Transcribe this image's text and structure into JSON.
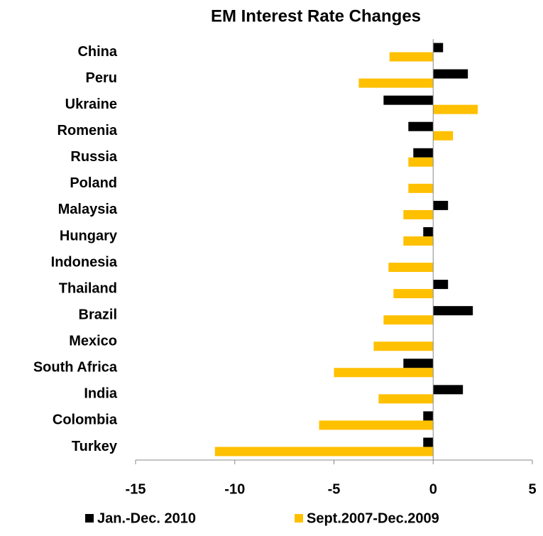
{
  "chart_data": {
    "type": "bar",
    "orientation": "horizontal",
    "title": "EM Interest Rate Changes",
    "categories": [
      "China",
      "Peru",
      "Ukraine",
      "Romenia",
      "Russia",
      "Poland",
      "Malaysia",
      "Hungary",
      "Indonesia",
      "Thailand",
      "Brazil",
      "Mexico",
      "South Africa",
      "India",
      "Colombia",
      "Turkey"
    ],
    "series": [
      {
        "name": "Jan.-Dec. 2010",
        "color": "#000000",
        "values": [
          0.5,
          1.75,
          -2.5,
          -1.25,
          -1.0,
          0,
          0.75,
          -0.5,
          0,
          0.75,
          2.0,
          0,
          -1.5,
          1.5,
          -0.5,
          -0.5
        ]
      },
      {
        "name": "Sept.2007-Dec.2009",
        "color": "#ffc000",
        "values": [
          -2.2,
          -3.75,
          2.25,
          1.0,
          -1.25,
          -1.25,
          -1.5,
          -1.5,
          -2.25,
          -2.0,
          -2.5,
          -3.0,
          -5.0,
          -2.75,
          -5.75,
          -11.0
        ]
      }
    ],
    "xlim": [
      -15,
      5
    ],
    "xticks": [
      -15,
      -10,
      -5,
      0,
      5
    ],
    "legend": "bottom"
  }
}
